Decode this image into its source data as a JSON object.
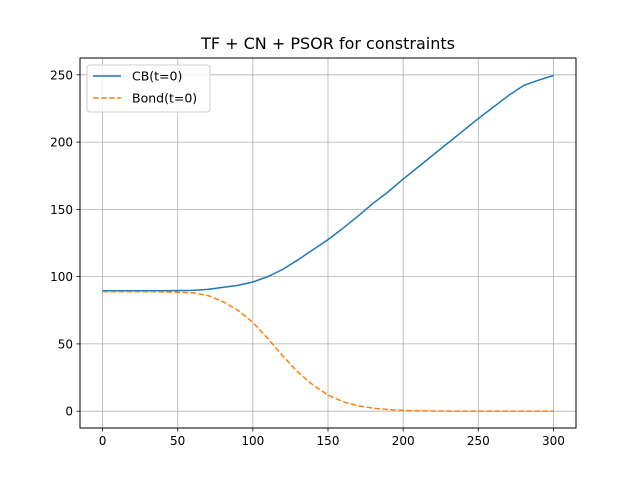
{
  "chart_data": {
    "type": "line",
    "title": "TF + CN + PSOR for constraints",
    "xlabel": "",
    "ylabel": "",
    "xlim": [
      -15,
      315
    ],
    "ylim": [
      -12.5,
      262.5
    ],
    "xticks": [
      0,
      50,
      100,
      150,
      200,
      250,
      300
    ],
    "yticks": [
      0,
      50,
      100,
      150,
      200,
      250
    ],
    "xtick_labels": [
      "0",
      "50",
      "100",
      "150",
      "200",
      "250",
      "300"
    ],
    "ytick_labels": [
      "0",
      "50",
      "100",
      "150",
      "200",
      "250"
    ],
    "grid": true,
    "legend_position": "top-left",
    "x": [
      0,
      20,
      40,
      60,
      70,
      80,
      90,
      100,
      110,
      120,
      130,
      140,
      150,
      160,
      170,
      180,
      190,
      200,
      210,
      220,
      230,
      240,
      250,
      260,
      270,
      280,
      290,
      300
    ],
    "series": [
      {
        "name": "CB(t=0)",
        "color": "#1f77b4",
        "style": "solid",
        "values": [
          89.5,
          89.5,
          89.5,
          89.8,
          90.5,
          92.0,
          93.5,
          96.0,
          100.0,
          105.5,
          112.5,
          120.0,
          127.5,
          136.0,
          145.0,
          154.5,
          163.0,
          172.5,
          181.5,
          190.5,
          199.5,
          208.5,
          217.5,
          226.0,
          234.5,
          242.0,
          246.0,
          249.5
        ]
      },
      {
        "name": "Bond(t=0)",
        "color": "#ff7f0e",
        "style": "dashed",
        "values": [
          88.8,
          88.8,
          88.7,
          88.0,
          86.0,
          81.5,
          75.0,
          66.0,
          54.0,
          41.0,
          29.0,
          19.5,
          12.0,
          7.0,
          4.0,
          2.2,
          1.2,
          0.6,
          0.3,
          0.15,
          0.1,
          0.05,
          0.02,
          0.0,
          0.0,
          0.0,
          0.0,
          0.0
        ]
      }
    ]
  }
}
